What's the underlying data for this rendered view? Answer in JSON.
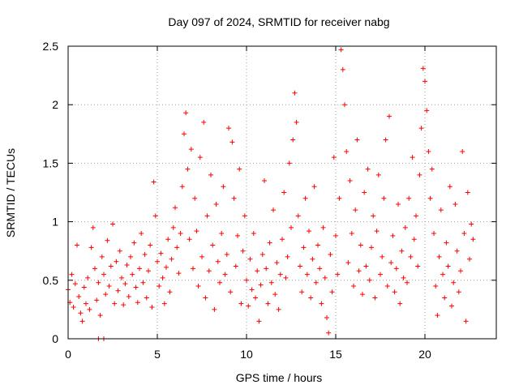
{
  "chart_data": {
    "type": "scatter",
    "title": "Day 097 of 2024, SRMTID for receiver nabg",
    "xlabel": "GPS time / hours",
    "ylabel": "SRMTID / TECUs",
    "xlim": [
      0,
      24
    ],
    "ylim": [
      0,
      2.5
    ],
    "xticks": [
      0,
      5,
      10,
      15,
      20
    ],
    "xtick_labels": [
      "0",
      "5",
      "10",
      "15",
      "20"
    ],
    "yticks": [
      0,
      0.5,
      1,
      1.5,
      2,
      2.5
    ],
    "ytick_labels": [
      "0",
      "0.5",
      "1",
      "1.5",
      "2",
      "2.5"
    ],
    "grid": true,
    "marker": "+",
    "color": "#ff0000",
    "series": [
      {
        "name": "SRMTID",
        "points": [
          [
            0.0,
            0.42
          ],
          [
            0.1,
            0.31
          ],
          [
            0.2,
            0.55
          ],
          [
            0.3,
            0.27
          ],
          [
            0.4,
            0.47
          ],
          [
            0.5,
            0.8
          ],
          [
            0.6,
            0.36
          ],
          [
            0.7,
            0.22
          ],
          [
            0.8,
            0.15
          ],
          [
            0.9,
            0.44
          ],
          [
            1.0,
            0.3
          ],
          [
            1.1,
            0.52
          ],
          [
            1.2,
            0.25
          ],
          [
            1.3,
            0.78
          ],
          [
            1.4,
            0.95
          ],
          [
            1.5,
            0.6
          ],
          [
            1.6,
            0.33
          ],
          [
            1.7,
            0.48
          ],
          [
            1.8,
            0.2
          ],
          [
            1.9,
            0.7
          ],
          [
            2.0,
            0.55
          ],
          [
            2.1,
            0.38
          ],
          [
            2.2,
            0.84
          ],
          [
            2.3,
            0.45
          ],
          [
            2.4,
            0.62
          ],
          [
            2.5,
            0.98
          ],
          [
            2.6,
            0.3
          ],
          [
            2.7,
            0.66
          ],
          [
            2.8,
            0.41
          ],
          [
            2.9,
            0.75
          ],
          [
            3.0,
            0.52
          ],
          [
            3.1,
            0.29
          ],
          [
            3.2,
            0.47
          ],
          [
            3.3,
            0.63
          ],
          [
            3.4,
            0.36
          ],
          [
            3.5,
            0.7
          ],
          [
            3.6,
            0.55
          ],
          [
            3.7,
            0.82
          ],
          [
            3.8,
            0.44
          ],
          [
            3.9,
            0.31
          ],
          [
            4.0,
            0.6
          ],
          [
            4.1,
            0.9
          ],
          [
            4.2,
            0.48
          ],
          [
            4.3,
            0.72
          ],
          [
            4.4,
            0.35
          ],
          [
            4.5,
            0.58
          ],
          [
            4.6,
            0.8
          ],
          [
            4.7,
            0.27
          ],
          [
            4.8,
            1.34
          ],
          [
            4.9,
            1.05
          ],
          [
            5.0,
            0.66
          ],
          [
            5.1,
            0.45
          ],
          [
            5.2,
            0.73
          ],
          [
            5.3,
            0.52
          ],
          [
            5.4,
            0.3
          ],
          [
            5.5,
            0.61
          ],
          [
            5.6,
            0.85
          ],
          [
            5.7,
            0.4
          ],
          [
            5.8,
            0.68
          ],
          [
            5.9,
            0.95
          ],
          [
            6.0,
            1.12
          ],
          [
            6.1,
            0.78
          ],
          [
            6.2,
            0.56
          ],
          [
            6.3,
            0.9
          ],
          [
            6.4,
            1.3
          ],
          [
            6.5,
            1.75
          ],
          [
            6.6,
            1.93
          ],
          [
            6.7,
            1.45
          ],
          [
            6.8,
            0.85
          ],
          [
            6.9,
            1.62
          ],
          [
            7.0,
            0.6
          ],
          [
            7.1,
            1.2
          ],
          [
            7.2,
            0.92
          ],
          [
            7.3,
            0.45
          ],
          [
            7.4,
            1.55
          ],
          [
            7.5,
            0.7
          ],
          [
            7.6,
            1.85
          ],
          [
            7.7,
            0.35
          ],
          [
            7.8,
            1.05
          ],
          [
            7.9,
            0.58
          ],
          [
            8.0,
            1.4
          ],
          [
            8.1,
            0.8
          ],
          [
            8.2,
            0.25
          ],
          [
            8.3,
            1.15
          ],
          [
            8.4,
            0.66
          ],
          [
            8.5,
            0.48
          ],
          [
            8.6,
            0.9
          ],
          [
            8.7,
            1.3
          ],
          [
            8.8,
            0.55
          ],
          [
            8.9,
            0.72
          ],
          [
            9.0,
            1.8
          ],
          [
            9.1,
            0.4
          ],
          [
            9.2,
            1.68
          ],
          [
            9.3,
            1.2
          ],
          [
            9.4,
            0.62
          ],
          [
            9.5,
            0.88
          ],
          [
            9.6,
            1.45
          ],
          [
            9.7,
            0.3
          ],
          [
            9.8,
            0.75
          ],
          [
            9.9,
            1.05
          ],
          [
            10.0,
            0.5
          ],
          [
            10.1,
            0.28
          ],
          [
            10.2,
            0.68
          ],
          [
            10.3,
            0.42
          ],
          [
            10.4,
            0.9
          ],
          [
            10.5,
            0.35
          ],
          [
            10.6,
            0.58
          ],
          [
            10.7,
            0.15
          ],
          [
            10.8,
            0.46
          ],
          [
            10.9,
            0.72
          ],
          [
            11.0,
            1.35
          ],
          [
            11.1,
            0.6
          ],
          [
            11.2,
            0.3
          ],
          [
            11.3,
            0.82
          ],
          [
            11.4,
            0.48
          ],
          [
            11.5,
            1.1
          ],
          [
            11.6,
            0.38
          ],
          [
            11.7,
            0.65
          ],
          [
            11.8,
            0.25
          ],
          [
            11.9,
            0.55
          ],
          [
            12.0,
            0.85
          ],
          [
            12.1,
            1.25
          ],
          [
            12.2,
            0.52
          ],
          [
            12.3,
            0.7
          ],
          [
            12.4,
            1.5
          ],
          [
            12.5,
            0.95
          ],
          [
            12.6,
            1.7
          ],
          [
            12.7,
            2.1
          ],
          [
            12.8,
            1.85
          ],
          [
            12.9,
            1.05
          ],
          [
            13.0,
            0.62
          ],
          [
            13.1,
            0.4
          ],
          [
            13.2,
            0.78
          ],
          [
            13.3,
            1.2
          ],
          [
            13.4,
            0.55
          ],
          [
            13.5,
            0.92
          ],
          [
            13.6,
            0.35
          ],
          [
            13.7,
            0.68
          ],
          [
            13.8,
            1.3
          ],
          [
            13.9,
            0.48
          ],
          [
            14.0,
            0.8
          ],
          [
            14.1,
            0.6
          ],
          [
            14.2,
            0.3
          ],
          [
            14.3,
            0.95
          ],
          [
            14.4,
            0.52
          ],
          [
            14.5,
            0.18
          ],
          [
            14.6,
            0.05
          ],
          [
            14.7,
            0.72
          ],
          [
            14.8,
            0.4
          ],
          [
            14.9,
            1.55
          ],
          [
            15.0,
            0.88
          ],
          [
            15.1,
            0.55
          ],
          [
            15.2,
            1.2
          ],
          [
            15.3,
            2.47
          ],
          [
            15.4,
            2.3
          ],
          [
            15.5,
            2.0
          ],
          [
            15.6,
            1.6
          ],
          [
            15.7,
            0.65
          ],
          [
            15.8,
            1.35
          ],
          [
            15.9,
            0.9
          ],
          [
            16.0,
            0.45
          ],
          [
            16.1,
            1.1
          ],
          [
            16.2,
            1.7
          ],
          [
            16.3,
            0.58
          ],
          [
            16.4,
            0.8
          ],
          [
            16.5,
            0.38
          ],
          [
            16.6,
            1.25
          ],
          [
            16.7,
            0.62
          ],
          [
            16.8,
            1.45
          ],
          [
            16.9,
            0.5
          ],
          [
            17.0,
            0.78
          ],
          [
            17.1,
            1.05
          ],
          [
            17.2,
            0.35
          ],
          [
            17.3,
            0.92
          ],
          [
            17.4,
            1.4
          ],
          [
            17.5,
            0.55
          ],
          [
            17.6,
            0.7
          ],
          [
            17.7,
            1.2
          ],
          [
            17.8,
            1.7
          ],
          [
            17.9,
            0.45
          ],
          [
            18.0,
            1.9
          ],
          [
            18.1,
            0.65
          ],
          [
            18.2,
            0.88
          ],
          [
            18.3,
            0.4
          ],
          [
            18.4,
            0.6
          ],
          [
            18.5,
            1.15
          ],
          [
            18.6,
            0.3
          ],
          [
            18.7,
            0.75
          ],
          [
            18.8,
            0.52
          ],
          [
            18.9,
            0.95
          ],
          [
            19.0,
            0.48
          ],
          [
            19.1,
            1.2
          ],
          [
            19.2,
            0.7
          ],
          [
            19.3,
            1.55
          ],
          [
            19.4,
            0.85
          ],
          [
            19.5,
            1.05
          ],
          [
            19.6,
            0.62
          ],
          [
            19.7,
            1.4
          ],
          [
            19.8,
            1.8
          ],
          [
            19.9,
            2.31
          ],
          [
            20.0,
            2.2
          ],
          [
            20.1,
            1.95
          ],
          [
            20.2,
            1.6
          ],
          [
            20.3,
            1.2
          ],
          [
            20.4,
            1.45
          ],
          [
            20.5,
            0.9
          ],
          [
            20.6,
            0.45
          ],
          [
            20.7,
            0.2
          ],
          [
            20.8,
            0.7
          ],
          [
            20.9,
            1.1
          ],
          [
            21.0,
            0.55
          ],
          [
            21.1,
            0.35
          ],
          [
            21.2,
            0.82
          ],
          [
            21.3,
            0.62
          ],
          [
            21.4,
            1.3
          ],
          [
            21.5,
            0.28
          ],
          [
            21.6,
            0.48
          ],
          [
            21.7,
            1.15
          ],
          [
            21.8,
            0.75
          ],
          [
            21.9,
            0.4
          ],
          [
            22.0,
            0.58
          ],
          [
            22.1,
            1.6
          ],
          [
            22.2,
            0.9
          ],
          [
            22.3,
            0.15
          ],
          [
            22.4,
            1.25
          ],
          [
            22.5,
            0.68
          ],
          [
            22.6,
            0.98
          ],
          [
            22.7,
            0.85
          ],
          [
            1.7,
            0.0
          ],
          [
            2.0,
            0.0
          ]
        ]
      }
    ]
  }
}
